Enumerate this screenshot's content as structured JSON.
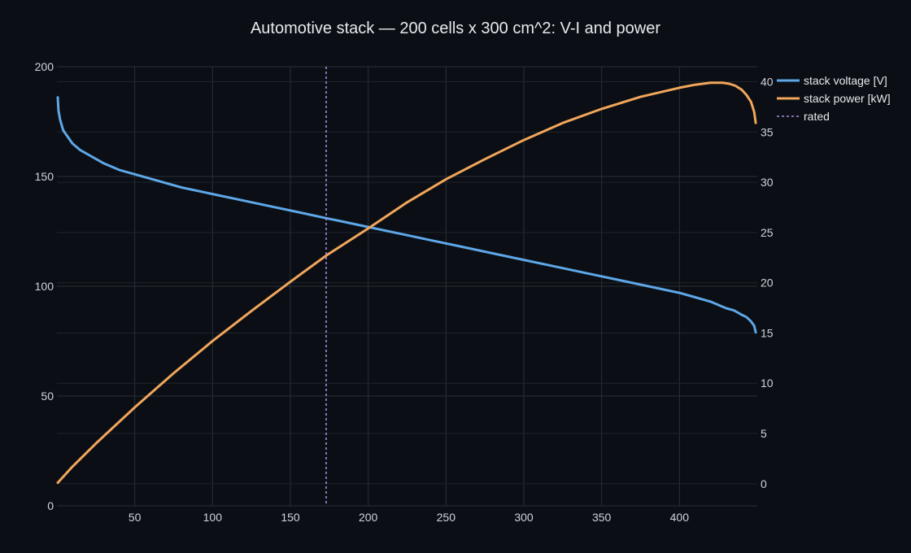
{
  "chart_data": {
    "type": "line",
    "title": "Automotive stack — 200 cells x 300 cm^2: V-I and power",
    "xlabel": "",
    "ylabel": "",
    "y2label": "",
    "xlim": [
      0,
      450
    ],
    "ylim": [
      0,
      200
    ],
    "y2lim": [
      -2.2,
      41.5
    ],
    "grid": true,
    "legend_position": "top-right",
    "x_ticks": [
      50,
      100,
      150,
      200,
      250,
      300,
      350,
      400
    ],
    "y_ticks": [
      0,
      50,
      100,
      150,
      200
    ],
    "y2_ticks": [
      0,
      5,
      10,
      15,
      20,
      25,
      30,
      35,
      40
    ],
    "rated_line": {
      "name": "rated",
      "x": 173,
      "color": "#a48be0"
    },
    "series": [
      {
        "name": "stack voltage [V]",
        "axis": "y",
        "color": "#5ea7e8",
        "x": [
          0.5,
          1,
          2,
          4,
          7,
          10,
          15,
          20,
          30,
          40,
          50,
          60,
          80,
          100,
          120,
          140,
          160,
          173,
          180,
          200,
          220,
          240,
          260,
          280,
          300,
          320,
          340,
          360,
          380,
          400,
          410,
          420,
          430,
          435,
          440,
          443,
          446,
          448,
          449
        ],
        "values": [
          186,
          180,
          176,
          171,
          168,
          165,
          162,
          160,
          156,
          153,
          151,
          149,
          145,
          142,
          139,
          136,
          133,
          131,
          130,
          127,
          124,
          121,
          118,
          115,
          112,
          109,
          106,
          103,
          100,
          97,
          95,
          93,
          90,
          89,
          87,
          86,
          84,
          82,
          79
        ]
      },
      {
        "name": "stack power [kW]",
        "axis": "y2",
        "color": "#f2a65a",
        "x": [
          0.5,
          10,
          25,
          50,
          75,
          100,
          125,
          150,
          173,
          200,
          225,
          250,
          275,
          300,
          325,
          350,
          375,
          400,
          410,
          420,
          428,
          432,
          436,
          440,
          443,
          446,
          448,
          449
        ],
        "values": [
          0.1,
          1.7,
          4.0,
          7.6,
          11.0,
          14.2,
          17.2,
          20.1,
          22.7,
          25.4,
          28.0,
          30.3,
          32.3,
          34.2,
          35.9,
          37.3,
          38.5,
          39.4,
          39.7,
          39.9,
          39.9,
          39.8,
          39.6,
          39.2,
          38.7,
          38.0,
          37.0,
          35.9
        ]
      }
    ]
  }
}
